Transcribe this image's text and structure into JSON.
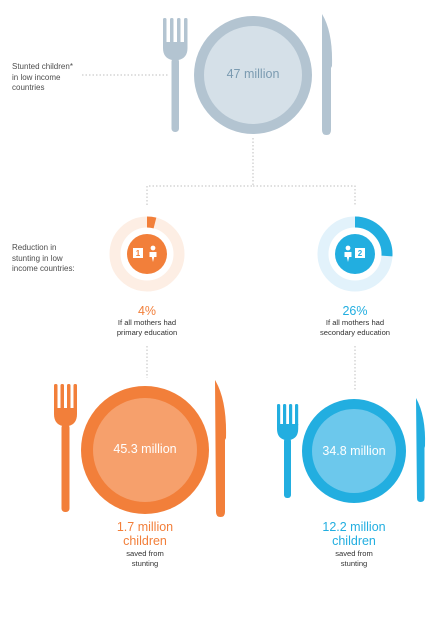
{
  "colors": {
    "gray": "#b3c4d1",
    "gray_text": "#7b9bb1",
    "orange": "#f27f3a",
    "orange_light": "#fdeee4",
    "blue": "#22aee0",
    "blue_light": "#e2f2fb",
    "line": "#bfbfbf"
  },
  "top": {
    "label_lines": [
      "Stunted children*",
      "in low income",
      "countries"
    ],
    "plate_value": "47 million"
  },
  "reduction_label_lines": [
    "Reduction in",
    "stunting in low",
    "income countries:"
  ],
  "left": {
    "step": "1",
    "percent": "4%",
    "percent_value": 4,
    "condition_lines": [
      "If all mothers had",
      "primary education"
    ],
    "plate_value": "45.3 million",
    "saved_lines": [
      "1.7 million",
      "children"
    ],
    "saved_caption_lines": [
      "saved from",
      "stunting"
    ]
  },
  "right": {
    "step": "2",
    "percent": "26%",
    "percent_value": 26,
    "condition_lines": [
      "If all mothers had",
      "secondary education"
    ],
    "plate_value": "34.8 million",
    "saved_lines": [
      "12.2 million",
      "children"
    ],
    "saved_caption_lines": [
      "saved from",
      "stunting"
    ]
  }
}
